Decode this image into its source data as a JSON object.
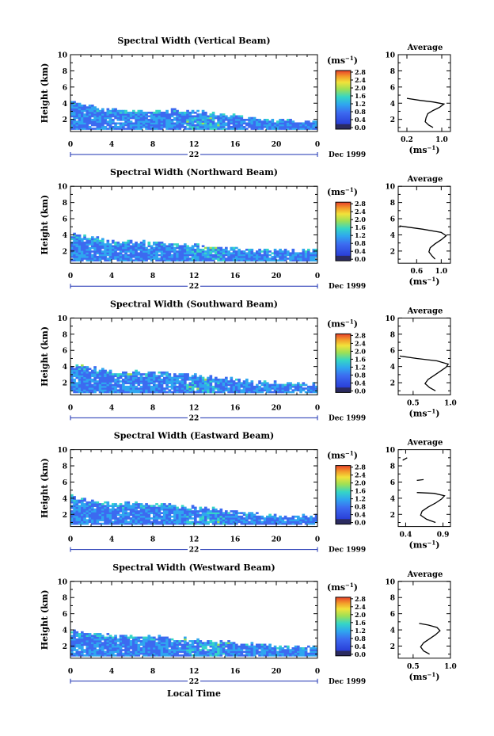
{
  "figure": {
    "xlabel": "Local Time",
    "date_label": "Dec 1999",
    "day_label": "22",
    "colorbar_unit": "(ms",
    "colorbar_unit_sup": "−1",
    "colorbar_unit_close": ")",
    "colorbar_ticks": [
      "0.0",
      "0.4",
      "0.8",
      "1.2",
      "1.6",
      "2.0",
      "2.4",
      "2.8"
    ],
    "colors": [
      "#2b2b60",
      "#2a3fd8",
      "#3c6af0",
      "#2fa6ef",
      "#35d6c6",
      "#9ee055",
      "#f2e23a",
      "#f39b2a",
      "#e8402a"
    ],
    "avg_title": "Average",
    "avg_xlabel": "(ms",
    "avg_xlabel_sup": "−1",
    "avg_xlabel_close": ")"
  },
  "chart_data": [
    {
      "type": "heatmap",
      "title": "Spectral Width (Vertical Beam)",
      "xlabel": "Local Time",
      "ylabel": "Height (km)",
      "x_ticks": [
        "0",
        "4",
        "8",
        "12",
        "16",
        "20",
        "0"
      ],
      "xlim": [
        0,
        24
      ],
      "y_ticks": [
        "2",
        "4",
        "6",
        "8",
        "10"
      ],
      "ylim": [
        0.5,
        10
      ],
      "colorbar_range": [
        0.0,
        2.8
      ],
      "echo_top_km": [
        [
          0,
          4.1
        ],
        [
          2,
          3.6
        ],
        [
          4,
          3.1
        ],
        [
          6,
          3.0
        ],
        [
          8,
          3.0
        ],
        [
          10,
          3.0
        ],
        [
          12,
          2.9
        ],
        [
          14,
          2.6
        ],
        [
          16,
          2.3
        ],
        [
          18,
          2.0
        ],
        [
          20,
          1.8
        ],
        [
          22,
          1.7
        ],
        [
          24,
          1.7
        ]
      ],
      "average_profile": {
        "title": "Average",
        "x_ticks": [
          "0.2",
          "1.0"
        ],
        "xlim": [
          0.0,
          1.2
        ],
        "y_ticks": [
          "2",
          "4",
          "6",
          "8",
          "10"
        ],
        "ylim": [
          0.5,
          10
        ],
        "points": [
          [
            0.8,
            1.0
          ],
          [
            0.7,
            1.3
          ],
          [
            0.62,
            1.7
          ],
          [
            0.64,
            2.2
          ],
          [
            0.68,
            2.7
          ],
          [
            0.8,
            3.1
          ],
          [
            0.95,
            3.5
          ],
          [
            1.05,
            3.9
          ],
          [
            0.8,
            4.15
          ],
          [
            0.5,
            4.35
          ],
          [
            0.2,
            4.6
          ]
        ]
      }
    },
    {
      "type": "heatmap",
      "title": "Spectral Width (Northward Beam)",
      "xlabel": "Local Time",
      "ylabel": "Height (km)",
      "x_ticks": [
        "0",
        "4",
        "8",
        "12",
        "16",
        "20",
        "0"
      ],
      "xlim": [
        0,
        24
      ],
      "y_ticks": [
        "2",
        "4",
        "6",
        "8",
        "10"
      ],
      "ylim": [
        0.5,
        10
      ],
      "colorbar_range": [
        0.0,
        2.8
      ],
      "echo_top_km": [
        [
          0,
          4.0
        ],
        [
          2,
          3.5
        ],
        [
          4,
          3.2
        ],
        [
          6,
          3.0
        ],
        [
          8,
          2.9
        ],
        [
          10,
          2.8
        ],
        [
          12,
          2.6
        ],
        [
          14,
          2.4
        ],
        [
          16,
          2.2
        ],
        [
          18,
          2.0
        ],
        [
          20,
          2.0
        ],
        [
          22,
          2.0
        ],
        [
          24,
          2.0
        ]
      ],
      "average_profile": {
        "title": "Average",
        "x_ticks": [
          "0.6",
          "1.0"
        ],
        "xlim": [
          0.3,
          1.15
        ],
        "y_ticks": [
          "2",
          "4",
          "6",
          "8",
          "10"
        ],
        "ylim": [
          0.5,
          10
        ],
        "points": [
          [
            0.9,
            1.0
          ],
          [
            0.85,
            1.4
          ],
          [
            0.8,
            1.9
          ],
          [
            0.82,
            2.4
          ],
          [
            0.9,
            2.9
          ],
          [
            1.0,
            3.4
          ],
          [
            1.08,
            3.9
          ],
          [
            1.0,
            4.3
          ],
          [
            0.7,
            4.7
          ],
          [
            0.32,
            5.1
          ]
        ]
      }
    },
    {
      "type": "heatmap",
      "title": "Spectral Width (Southward Beam)",
      "xlabel": "Local Time",
      "ylabel": "Height (km)",
      "x_ticks": [
        "0",
        "4",
        "8",
        "12",
        "16",
        "20",
        "0"
      ],
      "xlim": [
        0,
        24
      ],
      "y_ticks": [
        "2",
        "4",
        "6",
        "8",
        "10"
      ],
      "ylim": [
        0.5,
        10
      ],
      "colorbar_range": [
        0.0,
        2.8
      ],
      "echo_top_km": [
        [
          0,
          4.2
        ],
        [
          2,
          3.7
        ],
        [
          4,
          3.3
        ],
        [
          6,
          3.2
        ],
        [
          8,
          3.1
        ],
        [
          10,
          3.0
        ],
        [
          12,
          2.8
        ],
        [
          14,
          2.6
        ],
        [
          16,
          2.3
        ],
        [
          18,
          2.1
        ],
        [
          20,
          1.9
        ],
        [
          22,
          1.8
        ],
        [
          24,
          1.8
        ]
      ],
      "average_profile": {
        "title": "Average",
        "x_ticks": [
          "0.5",
          "1.0"
        ],
        "xlim": [
          0.3,
          1.0
        ],
        "y_ticks": [
          "2",
          "4",
          "6",
          "8",
          "10"
        ],
        "ylim": [
          0.5,
          10
        ],
        "points": [
          [
            0.8,
            1.0
          ],
          [
            0.72,
            1.4
          ],
          [
            0.66,
            1.9
          ],
          [
            0.7,
            2.4
          ],
          [
            0.78,
            2.9
          ],
          [
            0.86,
            3.4
          ],
          [
            0.94,
            3.9
          ],
          [
            0.97,
            4.3
          ],
          [
            0.82,
            4.7
          ],
          [
            0.55,
            5.0
          ],
          [
            0.32,
            5.3
          ]
        ]
      }
    },
    {
      "type": "heatmap",
      "title": "Spectral Width (Eastward Beam)",
      "xlabel": "Local Time",
      "ylabel": "Height (km)",
      "x_ticks": [
        "0",
        "4",
        "8",
        "12",
        "16",
        "20",
        "0"
      ],
      "xlim": [
        0,
        24
      ],
      "y_ticks": [
        "2",
        "4",
        "6",
        "8",
        "10"
      ],
      "ylim": [
        0.5,
        10
      ],
      "colorbar_range": [
        0.0,
        2.8
      ],
      "echo_top_km": [
        [
          0,
          4.1
        ],
        [
          2,
          3.6
        ],
        [
          4,
          3.3
        ],
        [
          6,
          3.2
        ],
        [
          8,
          3.1
        ],
        [
          10,
          3.0
        ],
        [
          12,
          2.8
        ],
        [
          14,
          2.5
        ],
        [
          16,
          2.2
        ],
        [
          18,
          2.0
        ],
        [
          20,
          1.8
        ],
        [
          22,
          1.7
        ],
        [
          24,
          1.7
        ]
      ],
      "average_profile": {
        "title": "Average",
        "x_ticks": [
          "0.4",
          "0.9"
        ],
        "xlim": [
          0.3,
          1.0
        ],
        "y_ticks": [
          "2",
          "4",
          "6",
          "8",
          "10"
        ],
        "ylim": [
          0.5,
          10
        ],
        "points": [
          [
            0.8,
            1.0
          ],
          [
            0.68,
            1.4
          ],
          [
            0.6,
            1.9
          ],
          [
            0.62,
            2.4
          ],
          [
            0.7,
            2.9
          ],
          [
            0.8,
            3.4
          ],
          [
            0.88,
            3.9
          ],
          [
            0.92,
            4.3
          ],
          [
            0.78,
            4.6
          ],
          [
            0.55,
            4.7
          ]
        ],
        "extra_segments": [
          [
            [
              0.55,
              6.2
            ],
            [
              0.64,
              6.3
            ]
          ],
          [
            [
              0.36,
              8.7
            ],
            [
              0.42,
              9.0
            ]
          ]
        ]
      }
    },
    {
      "type": "heatmap",
      "title": "Spectral Width (Westward Beam)",
      "xlabel": "Local Time",
      "ylabel": "Height (km)",
      "x_ticks": [
        "0",
        "4",
        "8",
        "12",
        "16",
        "20",
        "0"
      ],
      "xlim": [
        0,
        24
      ],
      "y_ticks": [
        "2",
        "4",
        "6",
        "8",
        "10"
      ],
      "ylim": [
        0.5,
        10
      ],
      "colorbar_range": [
        0.0,
        2.8
      ],
      "echo_top_km": [
        [
          0,
          4.0
        ],
        [
          2,
          3.5
        ],
        [
          4,
          3.2
        ],
        [
          6,
          3.1
        ],
        [
          8,
          3.0
        ],
        [
          10,
          2.9
        ],
        [
          12,
          2.7
        ],
        [
          14,
          2.5
        ],
        [
          16,
          2.3
        ],
        [
          18,
          2.1
        ],
        [
          20,
          1.9
        ],
        [
          22,
          1.8
        ],
        [
          24,
          1.8
        ]
      ],
      "average_profile": {
        "title": "Average",
        "x_ticks": [
          "0.5",
          "1.0"
        ],
        "xlim": [
          0.3,
          1.0
        ],
        "y_ticks": [
          "2",
          "4",
          "6",
          "8",
          "10"
        ],
        "ylim": [
          0.5,
          10
        ],
        "points": [
          [
            0.72,
            1.0
          ],
          [
            0.64,
            1.4
          ],
          [
            0.6,
            1.9
          ],
          [
            0.64,
            2.4
          ],
          [
            0.72,
            2.9
          ],
          [
            0.8,
            3.4
          ],
          [
            0.86,
            3.9
          ],
          [
            0.82,
            4.3
          ],
          [
            0.7,
            4.6
          ],
          [
            0.58,
            4.8
          ]
        ]
      }
    }
  ]
}
